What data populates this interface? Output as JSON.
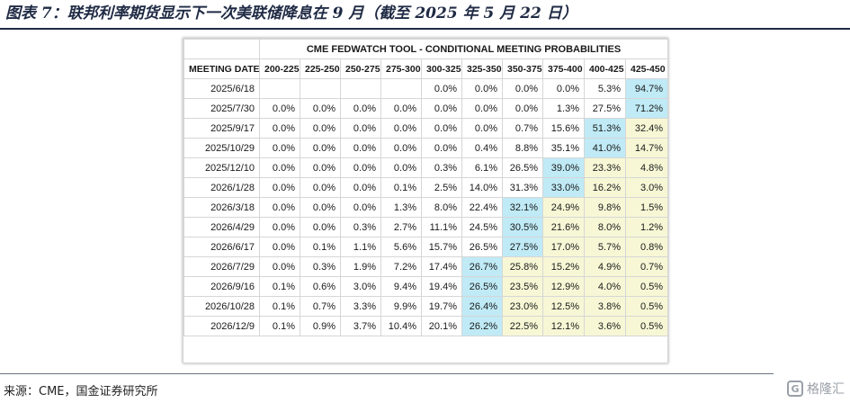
{
  "page": {
    "title": "图表 7：联邦利率期货显示下一次美联储降息在 9 月（截至 2025 年 5 月 22 日）",
    "source": "来源：CME，国金证券研究所",
    "watermark": "格隆汇",
    "watermark_logo": "G"
  },
  "colors": {
    "max_prob": "#bfeaf6",
    "above_current": "#f7f7d6",
    "rule": "#1f2a44"
  },
  "chart_data": {
    "type": "table",
    "title": "CME FEDWATCH TOOL - CONDITIONAL MEETING PROBABILITIES",
    "row_header": "MEETING DATE",
    "columns": [
      "200-225",
      "225-250",
      "250-275",
      "275-300",
      "300-325",
      "325-350",
      "350-375",
      "375-400",
      "400-425",
      "425-450"
    ],
    "rows": [
      {
        "date": "2025/6/18",
        "values": [
          "",
          "",
          "",
          "",
          "0.0%",
          "0.0%",
          "0.0%",
          "0.0%",
          "5.3%",
          "94.7%"
        ],
        "shade": [
          "",
          "",
          "",
          "",
          "",
          "",
          "",
          "",
          "",
          "cyan"
        ]
      },
      {
        "date": "2025/7/30",
        "values": [
          "0.0%",
          "0.0%",
          "0.0%",
          "0.0%",
          "0.0%",
          "0.0%",
          "0.0%",
          "1.3%",
          "27.5%",
          "71.2%"
        ],
        "shade": [
          "",
          "",
          "",
          "",
          "",
          "",
          "",
          "",
          "",
          "cyan"
        ]
      },
      {
        "date": "2025/9/17",
        "values": [
          "0.0%",
          "0.0%",
          "0.0%",
          "0.0%",
          "0.0%",
          "0.0%",
          "0.7%",
          "15.6%",
          "51.3%",
          "32.4%"
        ],
        "shade": [
          "",
          "",
          "",
          "",
          "",
          "",
          "",
          "",
          "cyan",
          "yellow"
        ]
      },
      {
        "date": "2025/10/29",
        "values": [
          "0.0%",
          "0.0%",
          "0.0%",
          "0.0%",
          "0.0%",
          "0.4%",
          "8.8%",
          "35.1%",
          "41.0%",
          "14.7%"
        ],
        "shade": [
          "",
          "",
          "",
          "",
          "",
          "",
          "",
          "",
          "cyan",
          "yellow"
        ]
      },
      {
        "date": "2025/12/10",
        "values": [
          "0.0%",
          "0.0%",
          "0.0%",
          "0.0%",
          "0.3%",
          "6.1%",
          "26.5%",
          "39.0%",
          "23.3%",
          "4.8%"
        ],
        "shade": [
          "",
          "",
          "",
          "",
          "",
          "",
          "",
          "cyan",
          "yellow",
          "yellow"
        ]
      },
      {
        "date": "2026/1/28",
        "values": [
          "0.0%",
          "0.0%",
          "0.0%",
          "0.1%",
          "2.5%",
          "14.0%",
          "31.3%",
          "33.0%",
          "16.2%",
          "3.0%"
        ],
        "shade": [
          "",
          "",
          "",
          "",
          "",
          "",
          "",
          "cyan",
          "yellow",
          "yellow"
        ]
      },
      {
        "date": "2026/3/18",
        "values": [
          "0.0%",
          "0.0%",
          "0.0%",
          "1.3%",
          "8.0%",
          "22.4%",
          "32.1%",
          "24.9%",
          "9.8%",
          "1.5%"
        ],
        "shade": [
          "",
          "",
          "",
          "",
          "",
          "",
          "cyan",
          "yellow",
          "yellow",
          "yellow"
        ]
      },
      {
        "date": "2026/4/29",
        "values": [
          "0.0%",
          "0.0%",
          "0.3%",
          "2.7%",
          "11.1%",
          "24.5%",
          "30.5%",
          "21.6%",
          "8.0%",
          "1.2%"
        ],
        "shade": [
          "",
          "",
          "",
          "",
          "",
          "",
          "cyan",
          "yellow",
          "yellow",
          "yellow"
        ]
      },
      {
        "date": "2026/6/17",
        "values": [
          "0.0%",
          "0.1%",
          "1.1%",
          "5.6%",
          "15.7%",
          "26.5%",
          "27.5%",
          "17.0%",
          "5.7%",
          "0.8%"
        ],
        "shade": [
          "",
          "",
          "",
          "",
          "",
          "",
          "cyan",
          "yellow",
          "yellow",
          "yellow"
        ]
      },
      {
        "date": "2026/7/29",
        "values": [
          "0.0%",
          "0.3%",
          "1.9%",
          "7.2%",
          "17.4%",
          "26.7%",
          "25.8%",
          "15.2%",
          "4.9%",
          "0.7%"
        ],
        "shade": [
          "",
          "",
          "",
          "",
          "",
          "cyan",
          "yellow",
          "yellow",
          "yellow",
          "yellow"
        ]
      },
      {
        "date": "2026/9/16",
        "values": [
          "0.1%",
          "0.6%",
          "3.0%",
          "9.4%",
          "19.4%",
          "26.5%",
          "23.5%",
          "12.9%",
          "4.0%",
          "0.5%"
        ],
        "shade": [
          "",
          "",
          "",
          "",
          "",
          "cyan",
          "yellow",
          "yellow",
          "yellow",
          "yellow"
        ]
      },
      {
        "date": "2026/10/28",
        "values": [
          "0.1%",
          "0.7%",
          "3.3%",
          "9.9%",
          "19.7%",
          "26.4%",
          "23.0%",
          "12.5%",
          "3.8%",
          "0.5%"
        ],
        "shade": [
          "",
          "",
          "",
          "",
          "",
          "cyan",
          "yellow",
          "yellow",
          "yellow",
          "yellow"
        ]
      },
      {
        "date": "2026/12/9",
        "values": [
          "0.1%",
          "0.9%",
          "3.7%",
          "10.4%",
          "20.1%",
          "26.2%",
          "22.5%",
          "12.1%",
          "3.6%",
          "0.5%"
        ],
        "shade": [
          "",
          "",
          "",
          "",
          "",
          "cyan",
          "yellow",
          "yellow",
          "yellow",
          "yellow"
        ]
      }
    ]
  }
}
